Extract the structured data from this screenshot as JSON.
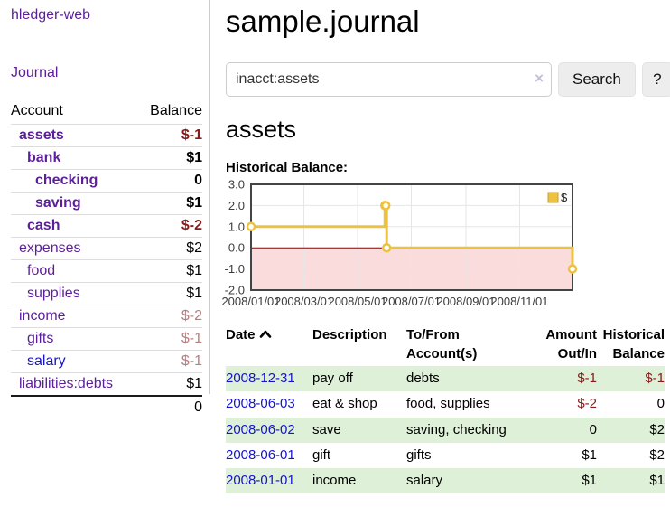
{
  "app": {
    "brand": "hledger-web"
  },
  "nav": {
    "journal_label": "Journal"
  },
  "sidebar": {
    "columns": {
      "account": "Account",
      "balance": "Balance"
    },
    "accounts": [
      {
        "name": "assets",
        "depth": 1,
        "bold": true,
        "balance": "$-1",
        "balance_style": "negative"
      },
      {
        "name": "bank",
        "depth": 2,
        "bold": true,
        "balance": "$1",
        "balance_style": null
      },
      {
        "name": "checking",
        "depth": 3,
        "bold": true,
        "balance": "0",
        "balance_style": null
      },
      {
        "name": "saving",
        "depth": 3,
        "bold": true,
        "balance": "$1",
        "balance_style": null
      },
      {
        "name": "cash",
        "depth": 2,
        "bold": true,
        "balance": "$-2",
        "balance_style": "negative"
      },
      {
        "name": "expenses",
        "depth": 1,
        "bold": false,
        "balance": "$2",
        "balance_style": null
      },
      {
        "name": "food",
        "depth": 2,
        "bold": false,
        "balance": "$1",
        "balance_style": null
      },
      {
        "name": "supplies",
        "depth": 2,
        "bold": false,
        "balance": "$1",
        "balance_style": null
      },
      {
        "name": "income",
        "depth": 1,
        "bold": false,
        "balance": "$-2",
        "balance_style": "faded"
      },
      {
        "name": "gifts",
        "depth": 2,
        "bold": false,
        "balance": "$-1",
        "balance_style": "faded"
      },
      {
        "name": "salary",
        "depth": 2,
        "bold": false,
        "link_style": "blue",
        "balance": "$-1",
        "balance_style": "faded"
      },
      {
        "name": "liabilities:debts",
        "depth": 1,
        "bold": false,
        "balance": "$1",
        "balance_style": null
      }
    ],
    "total": "0"
  },
  "header": {
    "title": "sample.journal"
  },
  "search": {
    "value": "inacct:assets",
    "clear_icon": "×",
    "button_label": "Search",
    "help_label": "?"
  },
  "account_page": {
    "heading": "assets",
    "chart_label": "Historical Balance:"
  },
  "chart_data": {
    "type": "line",
    "title": "Historical Balance:",
    "step": true,
    "legend_position": "top-right",
    "grid": true,
    "ylim": [
      -2,
      3
    ],
    "yticks": [
      3,
      2,
      1,
      0,
      -1,
      -2
    ],
    "ytick_labels": [
      "3.0",
      "2.0",
      "1.0",
      "0.0",
      "-1.0",
      "-2.0"
    ],
    "x_range_days": 365,
    "xticks": [
      {
        "day": 0,
        "label": "2008/01/01"
      },
      {
        "day": 60,
        "label": "2008/03/01"
      },
      {
        "day": 121,
        "label": "2008/05/01"
      },
      {
        "day": 182,
        "label": "2008/07/01"
      },
      {
        "day": 244,
        "label": "2008/09/01"
      },
      {
        "day": 305,
        "label": "2008/11/01"
      }
    ],
    "series": [
      {
        "name": "$",
        "points": [
          {
            "date": "2008-01-01",
            "day": 0,
            "value": 1
          },
          {
            "date": "2008-06-01",
            "day": 152,
            "value": 2
          },
          {
            "date": "2008-06-02",
            "day": 153,
            "value": 2
          },
          {
            "date": "2008-06-03",
            "day": 154,
            "value": 0
          },
          {
            "date": "2008-12-31",
            "day": 365,
            "value": -1
          }
        ]
      }
    ],
    "colors": {
      "line": "#edc240",
      "marker_fill": "#ffffff",
      "negative_region": "#fbdcdc",
      "zero_line": "#8b0000",
      "grid": "#e6e6e6",
      "border": "#444444",
      "tick_text": "#3c3c3c"
    }
  },
  "register": {
    "columns": {
      "date": "Date",
      "sort_icon": "chevron-up",
      "description": "Description",
      "account_line1": "To/From",
      "account_line2": "Account(s)",
      "amount_line1": "Amount",
      "amount_line2": "Out/In",
      "balance_line1": "Historical",
      "balance_line2": "Balance"
    },
    "rows": [
      {
        "date": "2008-12-31",
        "description": "pay off",
        "accounts": "debts",
        "amount": "$-1",
        "amount_negative": true,
        "balance": "$-1",
        "balance_negative": true,
        "highlight": true
      },
      {
        "date": "2008-06-03",
        "description": "eat & shop",
        "accounts": "food, supplies",
        "amount": "$-2",
        "amount_negative": true,
        "balance": "0",
        "balance_negative": false,
        "highlight": false
      },
      {
        "date": "2008-06-02",
        "description": "save",
        "accounts": "saving, checking",
        "amount": "0",
        "amount_negative": false,
        "balance": "$2",
        "balance_negative": false,
        "highlight": true
      },
      {
        "date": "2008-06-01",
        "description": "gift",
        "accounts": "gifts",
        "amount": "$1",
        "amount_negative": false,
        "balance": "$2",
        "balance_negative": false,
        "highlight": false
      },
      {
        "date": "2008-01-01",
        "description": "income",
        "accounts": "salary",
        "amount": "$1",
        "amount_negative": false,
        "balance": "$1",
        "balance_negative": false,
        "highlight": true
      }
    ]
  },
  "colors": {
    "purple_link": "#5c1f99",
    "blue_link": "#1414cc",
    "negative_amount": "#8b1a1a",
    "faded_negative_amount": "#bd7c7c",
    "row_highlight": "#dff0d8",
    "button_bg": "#ededed"
  }
}
